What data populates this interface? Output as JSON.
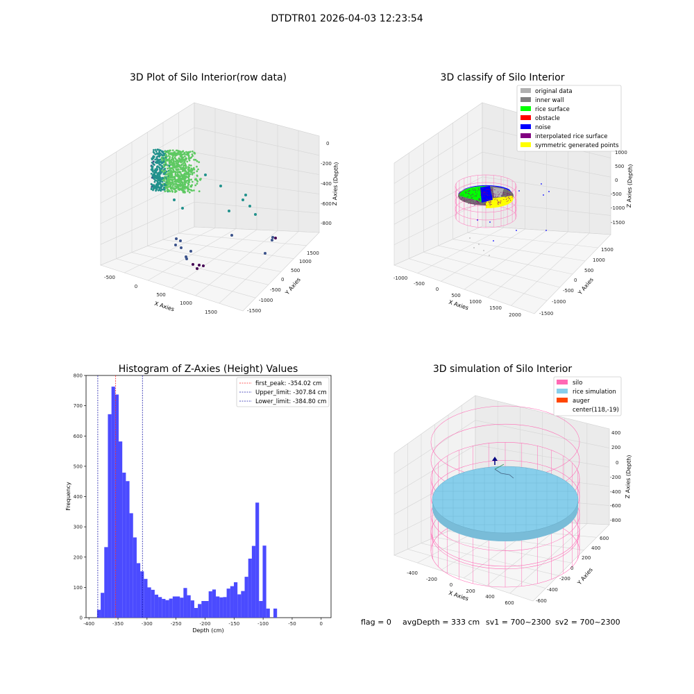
{
  "figure": {
    "suptitle": "DTDTR01 2026-04-03 12:23:54",
    "footer": {
      "flag": "flag = 0",
      "avg_depth": "avgDepth = 333 cm",
      "sv1": "sv1 = 700~2300",
      "sv2": "sv2 = 700~2300"
    }
  },
  "colors": {
    "hist_bar": "#4b4bff",
    "first_peak": "#ff2020",
    "limits": "#1a1aaa",
    "original": "#b0b0b0",
    "inner_wall": "#808080",
    "rice_surface": "#00ff00",
    "obstacle": "#ff0000",
    "noise": "#0000ff",
    "interpolated": "#800080",
    "symmetric": "#ffff00",
    "silo": "#ff69b4",
    "rice_sim": "#87ceeb",
    "auger": "#ff4500"
  },
  "chart_data": [
    {
      "type": "scatter",
      "projection": "3d",
      "title": "3D Plot of Silo Interior(row data)",
      "xlabel": "X Axies",
      "ylabel": "Y Axies",
      "zlabel": "Z Axies (Depth)",
      "x_ticks": [
        "-500",
        "0",
        "500",
        "1000",
        "1500"
      ],
      "y_ticks": [
        "-1500",
        "-1000",
        "-500",
        "0",
        "500",
        "1000",
        "1500"
      ],
      "z_ticks": [
        "0",
        "-200",
        "-400",
        "-600",
        "-800"
      ],
      "colormap": "viridis",
      "cluster": "dense point cloud near the wall at X≈-300…0, Z≈-150…-400",
      "grid": true
    },
    {
      "type": "scatter",
      "projection": "3d",
      "title": "3D classify of Silo Interior",
      "xlabel": "X Axies",
      "ylabel": "Y Axies",
      "zlabel": "Z Axies (Depth)",
      "x_ticks": [
        "-1000",
        "-500",
        "0",
        "500",
        "1000",
        "1500",
        "2000"
      ],
      "y_ticks": [
        "-1500",
        "-1000",
        "-500",
        "0",
        "500",
        "1000",
        "1500"
      ],
      "z_ticks": [
        "1000",
        "500",
        "0",
        "-500",
        "-1000",
        "-1500"
      ],
      "legend": {
        "position": "top-right",
        "entries": [
          {
            "label": "original data",
            "color": "#b0b0b0"
          },
          {
            "label": "inner wall",
            "color": "#808080"
          },
          {
            "label": "rice surface",
            "color": "#00ff00"
          },
          {
            "label": "obstacle",
            "color": "#ff0000"
          },
          {
            "label": "noise",
            "color": "#0000ff"
          },
          {
            "label": "interpolated rice surface",
            "color": "#800080"
          },
          {
            "label": "symmetric generated points",
            "color": "#ffff00"
          }
        ]
      },
      "grid": true
    },
    {
      "type": "bar",
      "title": "Histogram of Z-Axies (Height) Values",
      "xlabel": "Depth (cm)",
      "ylabel": "Frequency",
      "xlim": [
        -405,
        17
      ],
      "ylim": [
        0,
        800
      ],
      "x_ticks": [
        -400,
        -350,
        -300,
        -250,
        -200,
        -150,
        -100,
        -50,
        0
      ],
      "y_ticks": [
        0,
        100,
        200,
        300,
        400,
        500,
        600,
        700,
        800
      ],
      "bin_width": 6.2,
      "bin_start": -386,
      "counts": [
        26,
        82,
        233,
        672,
        763,
        737,
        582,
        479,
        451,
        345,
        265,
        180,
        153,
        128,
        100,
        92,
        76,
        68,
        62,
        58,
        63,
        70,
        70,
        66,
        98,
        74,
        57,
        32,
        45,
        55,
        55,
        87,
        93,
        70,
        67,
        68,
        96,
        104,
        117,
        77,
        88,
        135,
        195,
        237,
        380,
        55,
        238,
        30,
        0,
        30
      ],
      "vlines": [
        {
          "label": "first_peak: -354.02 cm",
          "value": -354.02,
          "color": "#ff2020"
        },
        {
          "label": "Upper_limit: -307.84 cm",
          "value": -307.84,
          "color": "#1a1aaa"
        },
        {
          "label": "Lower_limit: -384.80 cm",
          "value": -384.8,
          "color": "#1a1aaa"
        }
      ],
      "legend_position": "top-right"
    },
    {
      "type": "surface",
      "projection": "3d",
      "title": "3D simulation of Silo Interior",
      "xlabel": "X Axies",
      "ylabel": "Y Axies",
      "zlabel": "Z Axies (Depth)",
      "x_ticks": [
        "-400",
        "-200",
        "0",
        "200",
        "400",
        "600"
      ],
      "y_ticks": [
        "-600",
        "-400",
        "-200",
        "0",
        "200",
        "400",
        "600"
      ],
      "z_ticks": [
        "400",
        "200",
        "0",
        "-200",
        "-400",
        "-600",
        "-800"
      ],
      "legend": {
        "position": "top-right",
        "entries": [
          {
            "label": "silo",
            "color": "#ff69b4"
          },
          {
            "label": "rice simulation",
            "color": "#87ceeb"
          },
          {
            "label": "auger",
            "color": "#ff4500"
          },
          {
            "label": "center(118,-19)",
            "color": ""
          }
        ]
      },
      "grid": true
    }
  ]
}
